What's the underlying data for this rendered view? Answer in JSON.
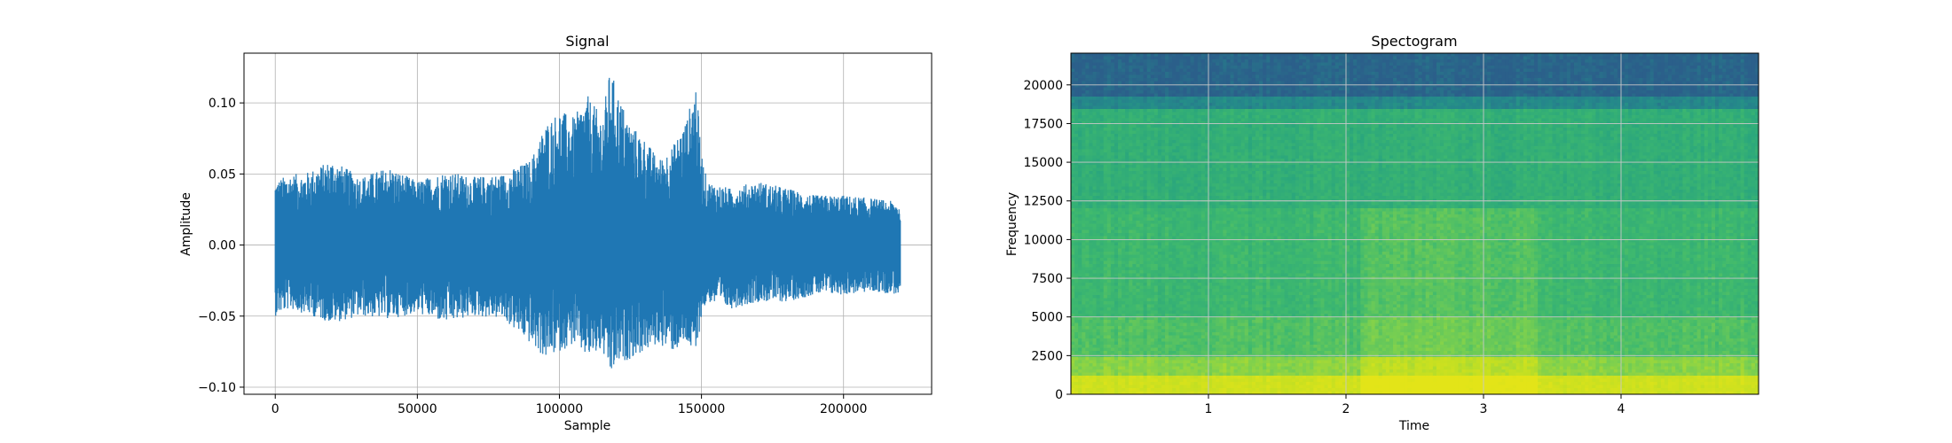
{
  "chart_data": [
    {
      "type": "line",
      "title": "Signal",
      "xlabel": "Sample",
      "ylabel": "Amplitude",
      "xlim": [
        -11000,
        231000
      ],
      "ylim": [
        -0.105,
        0.135
      ],
      "xticks": [
        0,
        50000,
        100000,
        150000,
        200000
      ],
      "xtick_labels": [
        "0",
        "50000",
        "100000",
        "150000",
        "200000"
      ],
      "yticks": [
        -0.1,
        -0.05,
        0.0,
        0.05,
        0.1
      ],
      "ytick_labels": [
        "−0.10",
        "−0.05",
        "0.00",
        "0.05",
        "0.10"
      ],
      "grid": true,
      "series": [
        {
          "color": "#1f77b4",
          "x": [
            0,
            5000,
            10000,
            20000,
            30000,
            40000,
            50000,
            60000,
            70000,
            80000,
            90000,
            95000,
            100000,
            105000,
            110000,
            115000,
            118000,
            120000,
            125000,
            130000,
            135000,
            140000,
            145000,
            148000,
            150000,
            152000,
            160000,
            170000,
            180000,
            190000,
            200000,
            210000,
            220000
          ],
          "upper": [
            0.045,
            0.05,
            0.05,
            0.06,
            0.048,
            0.055,
            0.045,
            0.052,
            0.048,
            0.05,
            0.06,
            0.085,
            0.095,
            0.09,
            0.105,
            0.09,
            0.125,
            0.11,
            0.085,
            0.075,
            0.06,
            0.07,
            0.09,
            0.115,
            0.065,
            0.045,
            0.04,
            0.045,
            0.04,
            0.035,
            0.035,
            0.033,
            0.03
          ],
          "lower": [
            -0.05,
            -0.045,
            -0.048,
            -0.055,
            -0.05,
            -0.052,
            -0.048,
            -0.055,
            -0.05,
            -0.052,
            -0.07,
            -0.08,
            -0.075,
            -0.07,
            -0.08,
            -0.075,
            -0.093,
            -0.085,
            -0.08,
            -0.075,
            -0.07,
            -0.075,
            -0.07,
            -0.08,
            -0.05,
            -0.04,
            -0.045,
            -0.04,
            -0.04,
            -0.035,
            -0.035,
            -0.033,
            -0.035
          ]
        }
      ]
    },
    {
      "type": "heatmap",
      "title": "Spectogram",
      "xlabel": "Time",
      "ylabel": "Frequency",
      "xlim": [
        0,
        5.0
      ],
      "ylim": [
        0,
        22050
      ],
      "xticks": [
        1,
        2,
        3,
        4
      ],
      "xtick_labels": [
        "1",
        "2",
        "3",
        "4"
      ],
      "yticks": [
        0,
        2500,
        5000,
        7500,
        10000,
        12500,
        15000,
        17500,
        20000
      ],
      "ytick_labels": [
        "0",
        "2500",
        "5000",
        "7500",
        "10000",
        "12500",
        "15000",
        "17500",
        "20000"
      ],
      "grid": true,
      "colormap": [
        "#2b5f8a",
        "#25868b",
        "#27a37f",
        "#3fb96e",
        "#7cd04f",
        "#c2df23",
        "#e3e418"
      ],
      "bands": [
        {
          "f0": 0,
          "f1": 1200,
          "level": 0.9
        },
        {
          "f0": 1200,
          "f1": 2500,
          "level": 0.7
        },
        {
          "f0": 2500,
          "f1": 5000,
          "level": 0.55
        },
        {
          "f0": 5000,
          "f1": 12000,
          "level": 0.48
        },
        {
          "f0": 12000,
          "f1": 18500,
          "level": 0.42
        },
        {
          "f0": 18500,
          "f1": 19300,
          "level": 0.18
        },
        {
          "f0": 19300,
          "f1": 22050,
          "level": 0.02
        }
      ],
      "loud_segment": {
        "t0": 2.1,
        "t1": 3.4
      }
    }
  ]
}
